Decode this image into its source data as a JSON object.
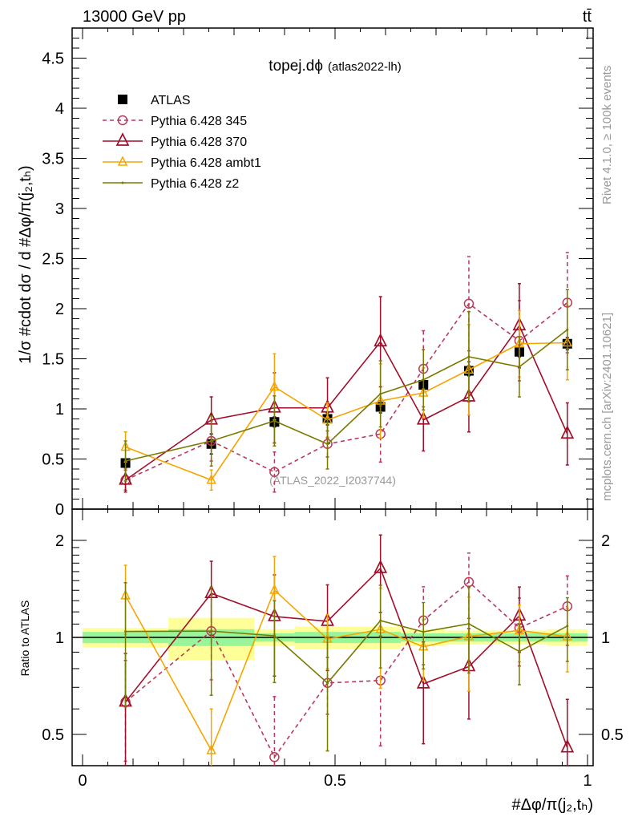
{
  "chart_data": [
    {
      "type": "line",
      "panel": "main",
      "header_left": "13000 GeV pp",
      "header_right": "tt̄",
      "title": "topej.dϕ",
      "subtitle": "(atlas2022-lh)",
      "watermark": "(ATLAS_2022_I2037744)",
      "side_text_top": "Rivet 4.1.0, ≥ 100k events",
      "side_text_bottom": "mcplots.cern.ch [arXiv:2401.10621]",
      "ylabel": "1/σ #cdot dσ / d #Δφ/π(j₂,tₕ)",
      "xlabel": "#Δφ/π(j₂,tₕ)",
      "xlim": [
        0,
        1
      ],
      "ylim": [
        0,
        4.8
      ],
      "yticks": [
        "0",
        "0.5",
        "1",
        "1.5",
        "2",
        "2.5",
        "3",
        "3.5",
        "4",
        "4.5"
      ],
      "x": [
        0.085,
        0.255,
        0.38,
        0.485,
        0.59,
        0.675,
        0.765,
        0.865,
        0.96
      ],
      "bin_edges": [
        0,
        0.17,
        0.34,
        0.42,
        0.55,
        0.63,
        0.72,
        0.81,
        0.92,
        1
      ],
      "series": [
        {
          "name": "ATLAS",
          "color": "#000000",
          "marker": "square",
          "values": [
            0.46,
            0.65,
            0.87,
            0.9,
            1.02,
            1.24,
            1.38,
            1.57,
            1.65
          ],
          "err": [
            0.03,
            0.1,
            0.05,
            0.06,
            0.06,
            0.05,
            0.05,
            0.05,
            0.06
          ]
        },
        {
          "name": "Pythia 6.428 345",
          "color": "#b83a5a",
          "marker": "circle",
          "dashed": true,
          "values": [
            0.29,
            0.68,
            0.37,
            0.65,
            0.75,
            1.4,
            2.05,
            1.68,
            2.06
          ],
          "err": [
            0.1,
            0.2,
            0.2,
            0.13,
            0.28,
            0.38,
            0.47,
            0.4,
            0.5
          ]
        },
        {
          "name": "Pythia 6.428 370",
          "color": "#a00f2a",
          "marker": "triangle",
          "values": [
            0.29,
            0.89,
            1.01,
            1.01,
            1.67,
            0.89,
            1.12,
            1.83,
            0.75
          ],
          "err": [
            0.12,
            0.23,
            0.35,
            0.3,
            0.45,
            0.31,
            0.35,
            0.42,
            0.31
          ]
        },
        {
          "name": "Pythia 6.428 ambt1",
          "color": "#f5a500",
          "marker": "small-triangle",
          "values": [
            0.62,
            0.29,
            1.22,
            0.89,
            1.08,
            1.16,
            1.39,
            1.65,
            1.66
          ],
          "err": [
            0.15,
            0.1,
            0.33,
            0.17,
            0.37,
            0.25,
            0.45,
            0.33,
            0.37
          ]
        },
        {
          "name": "Pythia 6.428 z2",
          "color": "#7a7a00",
          "marker": "dot",
          "values": [
            0.48,
            0.68,
            0.88,
            0.65,
            1.15,
            1.29,
            1.52,
            1.42,
            1.79
          ],
          "err": [
            0.2,
            0.25,
            0.25,
            0.25,
            0.33,
            0.3,
            0.45,
            0.3,
            0.4
          ]
        }
      ]
    },
    {
      "type": "line",
      "panel": "ratio",
      "ylabel": "Ratio to ATLAS",
      "yscale": "log",
      "ylim": [
        0.4,
        2.5
      ],
      "yticks": [
        "0.5",
        "1",
        "2"
      ],
      "xticks": [
        "0",
        "0.5",
        "1"
      ],
      "band_green": [
        0.04,
        0.06,
        0.03,
        0.04,
        0.04,
        0.03,
        0.03,
        0.03,
        0.03
      ],
      "band_yellow": [
        0.07,
        0.15,
        0.06,
        0.08,
        0.08,
        0.06,
        0.05,
        0.05,
        0.06
      ]
    }
  ]
}
